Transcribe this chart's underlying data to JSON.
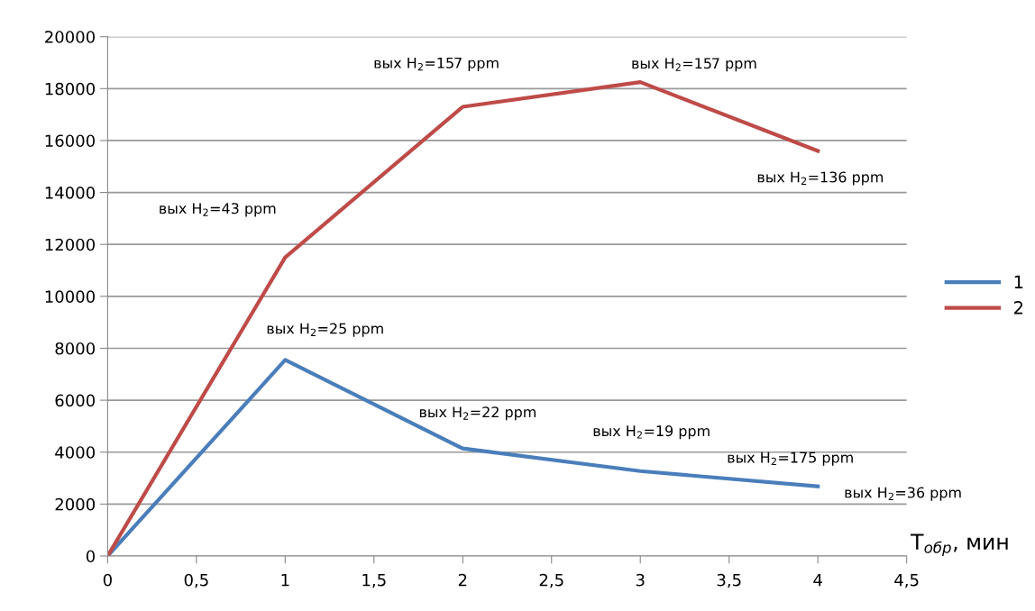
{
  "chart_data": {
    "type": "line",
    "x": [
      0,
      1,
      2,
      3,
      4
    ],
    "series": [
      {
        "name": "1",
        "color": "#4a7ebb",
        "values": [
          0,
          7550,
          4140,
          3270,
          2680
        ]
      },
      {
        "name": "2",
        "color": "#be4b48",
        "values": [
          0,
          11500,
          17300,
          18250,
          15600
        ]
      }
    ],
    "xlabel": "T$_{обр}$, мин",
    "xlim": [
      0,
      4.5
    ],
    "xticks": [
      0,
      {
        "value": 0.5,
        "label": "0,5"
      },
      1,
      {
        "value": 1.5,
        "label": "1,5"
      },
      2,
      {
        "value": 2.5,
        "label": "2,5"
      },
      3,
      {
        "value": 3.5,
        "label": "3,5"
      },
      4,
      {
        "value": 4.5,
        "label": "4,5"
      }
    ],
    "ylim": [
      0,
      20000
    ],
    "yticks": [
      0,
      2000,
      4000,
      6000,
      8000,
      10000,
      12000,
      14000,
      16000,
      18000,
      20000
    ],
    "grid": "y",
    "legend": "right",
    "marker": "none",
    "line_style": "solid",
    "annotations": [
      {
        "text": "вых H$_{2}$=43 ppm",
        "x": 1,
        "y": 11500
      },
      {
        "text": "вых H$_{2}$=157 ppm",
        "x": 2,
        "y": 17300
      },
      {
        "text": "вых H$_{2}$=157 ppm",
        "x": 3,
        "y": 18250
      },
      {
        "text": "вых H$_{2}$=136 ppm",
        "x": 4,
        "y": 15600
      },
      {
        "text": "вых H$_{2}$=25 ppm",
        "x": 1,
        "y": 7550
      },
      {
        "text": "вых H$_{2}$=22 ppm",
        "x": 2,
        "y": 4140
      },
      {
        "text": "вых H$_{2}$=19 ppm",
        "x": 3,
        "y": 3270
      },
      {
        "text": "вых H$_{2}$=175 ppm",
        "x": 3.5,
        "y": 2975
      },
      {
        "text": "вых H$_{2}$=36 ppm",
        "x": 4,
        "y": 2680
      }
    ]
  }
}
